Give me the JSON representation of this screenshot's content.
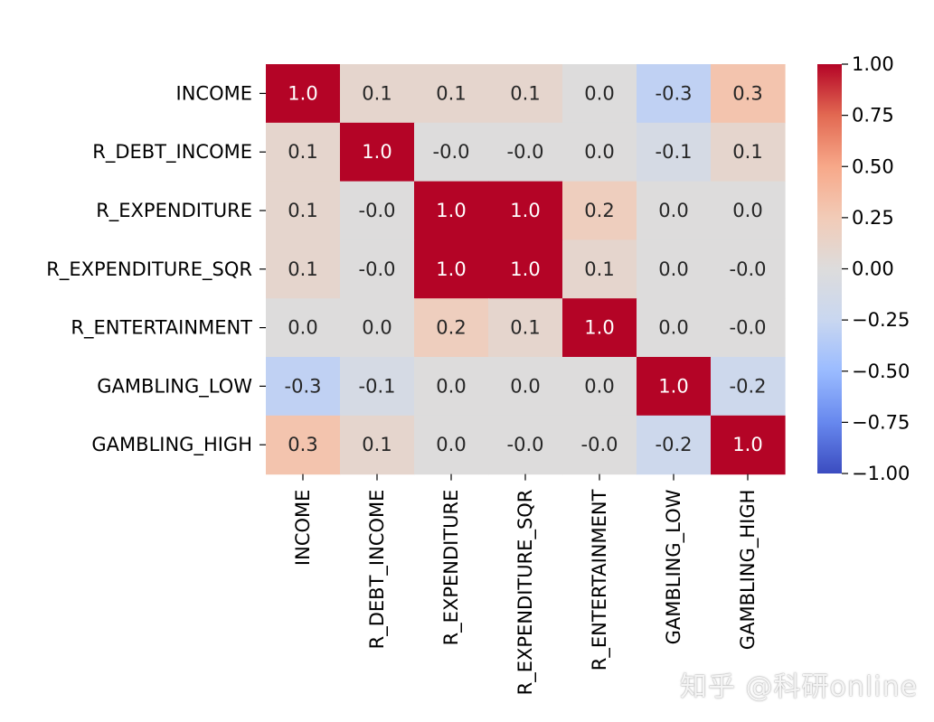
{
  "chart_data": {
    "type": "heatmap",
    "title": "",
    "row_labels": [
      "INCOME",
      "R_DEBT_INCOME",
      "R_EXPENDITURE",
      "R_EXPENDITURE_SQR",
      "R_ENTERTAINMENT",
      "GAMBLING_LOW",
      "GAMBLING_HIGH"
    ],
    "col_labels": [
      "INCOME",
      "R_DEBT_INCOME",
      "R_EXPENDITURE",
      "R_EXPENDITURE_SQR",
      "R_ENTERTAINMENT",
      "GAMBLING_LOW",
      "GAMBLING_HIGH"
    ],
    "values": [
      [
        1.0,
        0.1,
        0.1,
        0.1,
        0.0,
        -0.3,
        0.3
      ],
      [
        0.1,
        1.0,
        -0.0,
        -0.0,
        0.0,
        -0.1,
        0.1
      ],
      [
        0.1,
        -0.0,
        1.0,
        1.0,
        0.2,
        0.0,
        0.0
      ],
      [
        0.1,
        -0.0,
        1.0,
        1.0,
        0.1,
        0.0,
        -0.0
      ],
      [
        0.0,
        0.0,
        0.2,
        0.1,
        1.0,
        0.0,
        -0.0
      ],
      [
        -0.3,
        -0.1,
        0.0,
        0.0,
        0.0,
        1.0,
        -0.2
      ],
      [
        0.3,
        0.1,
        0.0,
        -0.0,
        -0.0,
        -0.2,
        1.0
      ]
    ],
    "cell_text": [
      [
        "1.0",
        "0.1",
        "0.1",
        "0.1",
        "0.0",
        "-0.3",
        "0.3"
      ],
      [
        "0.1",
        "1.0",
        "-0.0",
        "-0.0",
        "0.0",
        "-0.1",
        "0.1"
      ],
      [
        "0.1",
        "-0.0",
        "1.0",
        "1.0",
        "0.2",
        "0.0",
        "0.0"
      ],
      [
        "0.1",
        "-0.0",
        "1.0",
        "1.0",
        "0.1",
        "0.0",
        "-0.0"
      ],
      [
        "0.0",
        "0.0",
        "0.2",
        "0.1",
        "1.0",
        "0.0",
        "-0.0"
      ],
      [
        "-0.3",
        "-0.1",
        "0.0",
        "0.0",
        "0.0",
        "1.0",
        "-0.2"
      ],
      [
        "0.3",
        "0.1",
        "0.0",
        "-0.0",
        "-0.0",
        "-0.2",
        "1.0"
      ]
    ],
    "colormap": "coolwarm",
    "vmin": -1.0,
    "vmax": 1.0,
    "colorbar_ticks": [
      1.0,
      0.75,
      0.5,
      0.25,
      0.0,
      -0.25,
      -0.5,
      -0.75,
      -1.0
    ],
    "colorbar_tick_labels": [
      "1.00",
      "0.75",
      "0.50",
      "0.25",
      "0.00",
      "−0.25",
      "−0.50",
      "−0.75",
      "−1.00"
    ],
    "colormap_stops": [
      "#3b4cc0",
      "#6788ee",
      "#9abbff",
      "#c9d7f0",
      "#dddcdc",
      "#f2cbb7",
      "#f7a889",
      "#e26952",
      "#b40426"
    ]
  },
  "watermark": {
    "text": "知乎 @科研online"
  }
}
